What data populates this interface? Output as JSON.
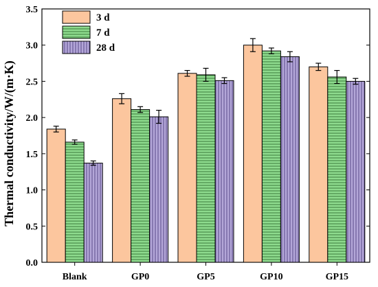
{
  "chart_data": {
    "type": "bar",
    "categories": [
      "Blank",
      "GP0",
      "GP5",
      "GP10",
      "GP15"
    ],
    "series": [
      {
        "name": "3 d",
        "values": [
          1.84,
          2.26,
          2.61,
          3.0,
          2.7
        ],
        "errors": [
          0.04,
          0.07,
          0.04,
          0.09,
          0.05
        ],
        "color": "#FCC69E",
        "pattern": "none"
      },
      {
        "name": "7 d",
        "values": [
          1.66,
          2.11,
          2.59,
          2.92,
          2.56
        ],
        "errors": [
          0.03,
          0.04,
          0.09,
          0.04,
          0.09
        ],
        "color": "#8EDB8E",
        "pattern": "horizontal-lines"
      },
      {
        "name": "28 d",
        "values": [
          1.37,
          2.01,
          2.51,
          2.84,
          2.5
        ],
        "errors": [
          0.03,
          0.09,
          0.04,
          0.07,
          0.04
        ],
        "color": "#B4A7D9",
        "pattern": "vertical-lines"
      }
    ],
    "title": "",
    "xlabel": "",
    "ylabel": "Thermal conductivity/W/(m·K)",
    "ylim": [
      0,
      3.5
    ],
    "yticks": [
      "0.0",
      "0.5",
      "1.0",
      "1.5",
      "2.0",
      "2.5",
      "3.0",
      "3.5"
    ],
    "grid": false,
    "legend_position": "top-left"
  }
}
